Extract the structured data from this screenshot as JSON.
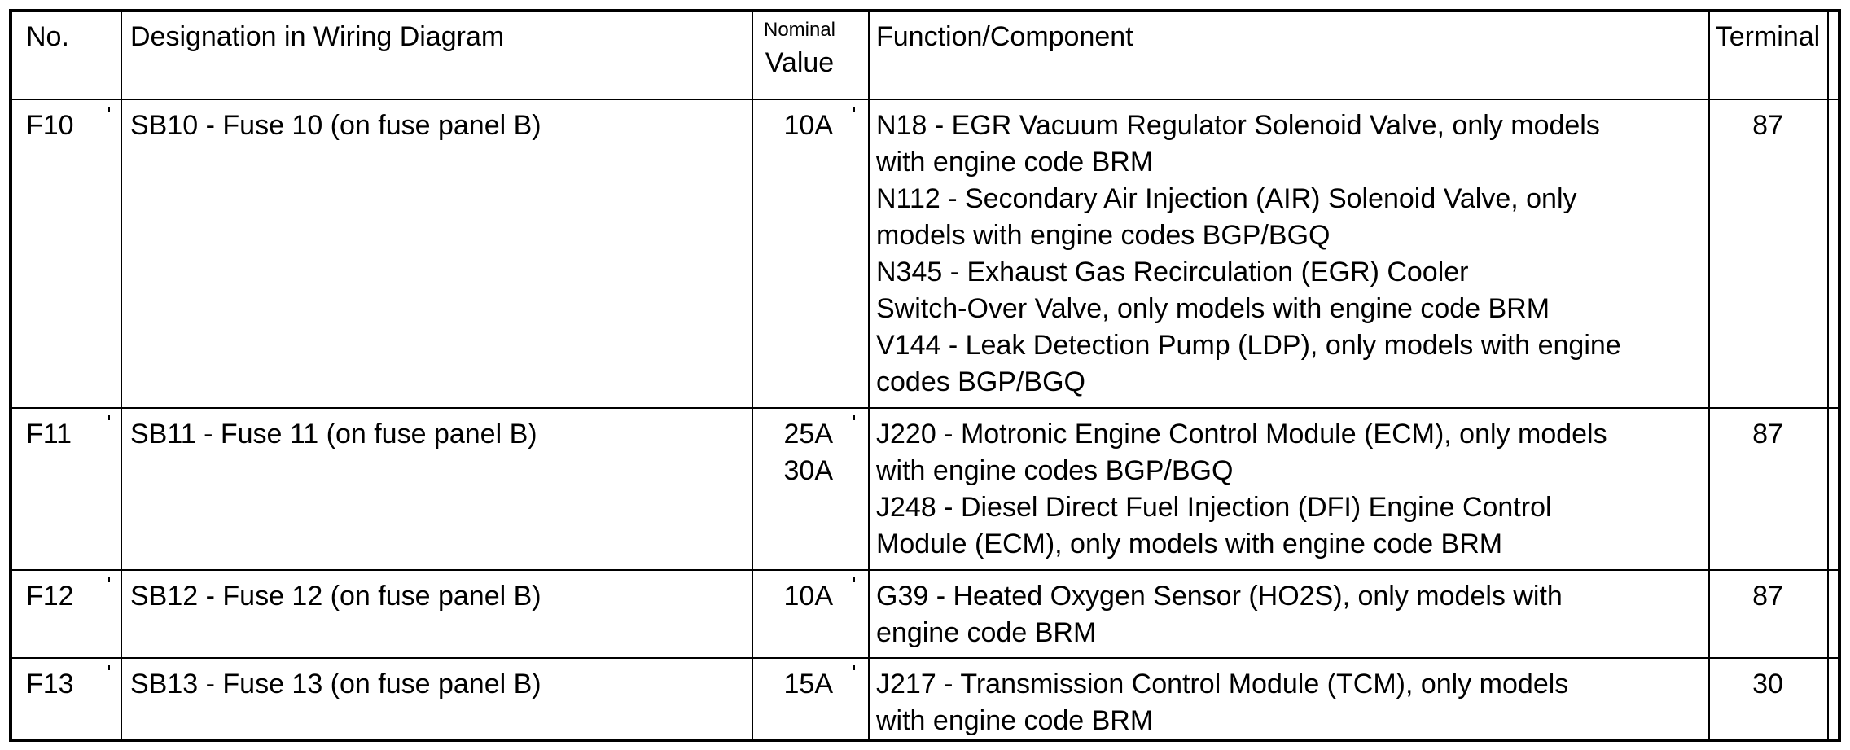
{
  "headers": {
    "no": "No.",
    "designation": "Designation in Wiring Diagram",
    "nominal_top": "Nominal",
    "nominal_bottom": "Value",
    "function": "Function/Component",
    "terminal": "Terminal"
  },
  "rows": [
    {
      "no": "F10",
      "designation": "SB10 - Fuse 10 (on fuse panel B)",
      "value": [
        "10A"
      ],
      "function_lines": [
        "N18 - EGR Vacuum Regulator Solenoid Valve, only models",
        "with engine code BRM",
        "N112 - Secondary Air Injection (AIR) Solenoid Valve, only",
        "models with engine codes BGP/BGQ",
        "N345 - Exhaust Gas Recirculation (EGR) Cooler",
        "Switch-Over Valve, only models with engine code BRM",
        "V144 - Leak Detection Pump (LDP), only models with engine",
        "codes BGP/BGQ"
      ],
      "terminal": "87"
    },
    {
      "no": "F11",
      "designation": "SB11 - Fuse 11 (on fuse panel B)",
      "value": [
        "25A",
        "30A"
      ],
      "function_lines": [
        "J220 - Motronic Engine Control Module (ECM), only models",
        "with engine codes BGP/BGQ",
        "J248 - Diesel Direct Fuel Injection (DFI) Engine Control",
        "Module (ECM), only models with engine code BRM"
      ],
      "terminal": "87"
    },
    {
      "no": "F12",
      "designation": "SB12 - Fuse 12 (on fuse panel B)",
      "value": [
        "10A"
      ],
      "function_lines": [
        "G39 - Heated Oxygen Sensor (HO2S), only models with",
        "engine code BRM"
      ],
      "terminal": "87"
    },
    {
      "no": "F13",
      "designation": "SB13 - Fuse 13 (on fuse panel B)",
      "value": [
        "15A"
      ],
      "function_lines": [
        "J217 - Transmission Control Module (TCM), only models",
        "with engine code BRM"
      ],
      "terminal": "30"
    }
  ]
}
